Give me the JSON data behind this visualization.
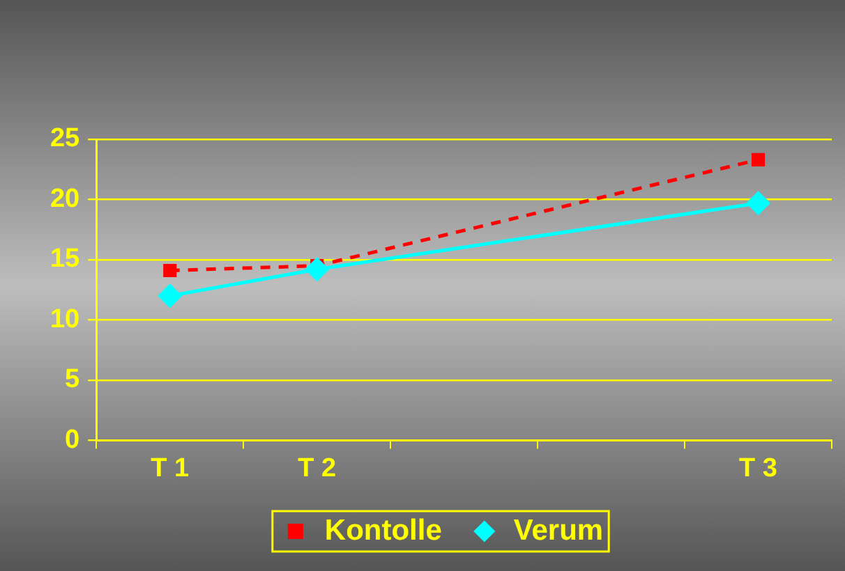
{
  "chart_data": {
    "type": "line",
    "categories": [
      "T 1",
      "T 2",
      null,
      null,
      "T 3"
    ],
    "series": [
      {
        "name": "Kontolle",
        "color": "#ff0000",
        "values": [
          14.1,
          14.5,
          null,
          null,
          23.3
        ],
        "marker": "square",
        "line_style": "dashed"
      },
      {
        "name": "Verum",
        "color": "#00ffff",
        "values": [
          12,
          14.2,
          null,
          null,
          19.7
        ],
        "marker": "diamond",
        "line_style": "solid"
      }
    ],
    "ylim": [
      0,
      25
    ],
    "yticks": [
      0,
      5,
      10,
      15,
      20,
      25
    ],
    "grid": "y",
    "legend": "bottom"
  }
}
